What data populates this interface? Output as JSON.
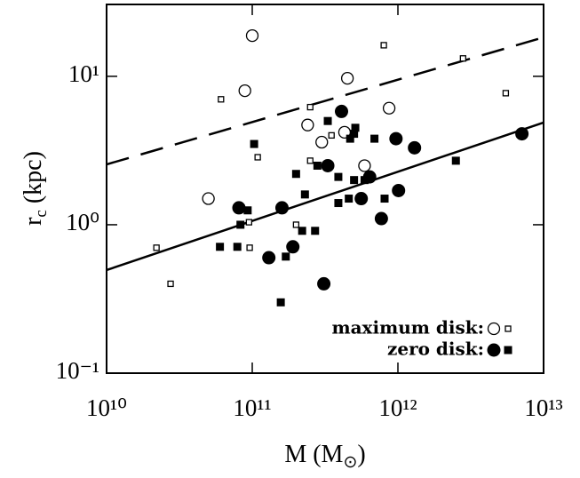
{
  "chart_data": {
    "type": "scatter",
    "xlabel": [
      "M (M",
      "⊙",
      ")"
    ],
    "ylabel": [
      "r",
      "c",
      " (kpc)"
    ],
    "xscale": "log",
    "yscale": "log",
    "xlim": [
      10000000000.0,
      10000000000000.0
    ],
    "ylim": [
      0.1,
      30.5
    ],
    "xticks": [
      {
        "value": 10000000000.0,
        "label": "10¹⁰"
      },
      {
        "value": 100000000000.0,
        "label": "10¹¹"
      },
      {
        "value": 1000000000000.0,
        "label": "10¹²"
      },
      {
        "value": 10000000000000.0,
        "label": "10¹³"
      }
    ],
    "yticks": [
      {
        "value": 0.1,
        "label": "10⁻¹"
      },
      {
        "value": 1,
        "label": "10⁰"
      },
      {
        "value": 10,
        "label": "10¹"
      }
    ],
    "legend": [
      {
        "label": "maximum disk:",
        "filled": false
      },
      {
        "label": "zero disk:",
        "filled": true
      }
    ],
    "series": [
      {
        "marker": "circle",
        "filled": false,
        "color": "#000",
        "x": [
          100000000000.0,
          89000000000.0,
          450000000000.0,
          870000000000.0,
          240000000000.0,
          430000000000.0,
          300000000000.0,
          590000000000.0,
          50000000000.0
        ],
        "values": [
          18.8,
          8.0,
          9.7,
          6.1,
          4.7,
          4.2,
          3.6,
          2.5,
          1.5
        ]
      },
      {
        "marker": "square",
        "filled": false,
        "color": "#000",
        "x": [
          800000000000.0,
          2800000000000.0,
          5500000000000.0,
          61000000000.0,
          250000000000.0,
          109000000000.0,
          350000000000.0,
          250000000000.0,
          22000000000.0,
          27500000000.0,
          95000000000.0,
          96000000000.0,
          200000000000.0
        ],
        "values": [
          16.2,
          13.2,
          7.7,
          7.0,
          6.2,
          2.85,
          4.0,
          2.7,
          0.7,
          0.4,
          1.04,
          0.7,
          1.0
        ]
      },
      {
        "marker": "circle",
        "filled": true,
        "color": "#000",
        "x": [
          410000000000.0,
          7100000000000.0,
          1300000000000.0,
          970000000000.0,
          330000000000.0,
          640000000000.0,
          1010000000000.0,
          560000000000.0,
          770000000000.0,
          81000000000.0,
          160000000000.0,
          190000000000.0,
          130000000000.0,
          310000000000.0
        ],
        "values": [
          5.8,
          4.1,
          3.3,
          3.8,
          2.5,
          2.1,
          1.7,
          1.5,
          1.1,
          1.3,
          1.3,
          0.71,
          0.6,
          0.4
        ]
      },
      {
        "marker": "square",
        "filled": true,
        "color": "#000",
        "x": [
          103000000000.0,
          330000000000.0,
          500000000000.0,
          510000000000.0,
          470000000000.0,
          690000000000.0,
          280000000000.0,
          200000000000.0,
          390000000000.0,
          500000000000.0,
          590000000000.0,
          2500000000000.0,
          230000000000.0,
          390000000000.0,
          460000000000.0,
          810000000000.0,
          93000000000.0,
          83000000000.0,
          220000000000.0,
          270000000000.0,
          60000000000.0,
          79000000000.0,
          170000000000.0,
          157000000000.0
        ],
        "values": [
          3.5,
          5.0,
          4.1,
          4.5,
          3.8,
          3.8,
          2.5,
          2.2,
          2.1,
          2.0,
          2.0,
          2.7,
          1.6,
          1.4,
          1.5,
          1.5,
          1.25,
          1.0,
          0.91,
          0.91,
          0.71,
          0.71,
          0.61,
          0.3
        ]
      }
    ],
    "fits": [
      {
        "dash": true,
        "x": [
          10000000000.0,
          10000000000000.0
        ],
        "values": [
          2.55,
          18.3
        ]
      },
      {
        "dash": false,
        "x": [
          10000000000.0,
          10000000000000.0
        ],
        "values": [
          0.495,
          4.88
        ]
      }
    ]
  }
}
